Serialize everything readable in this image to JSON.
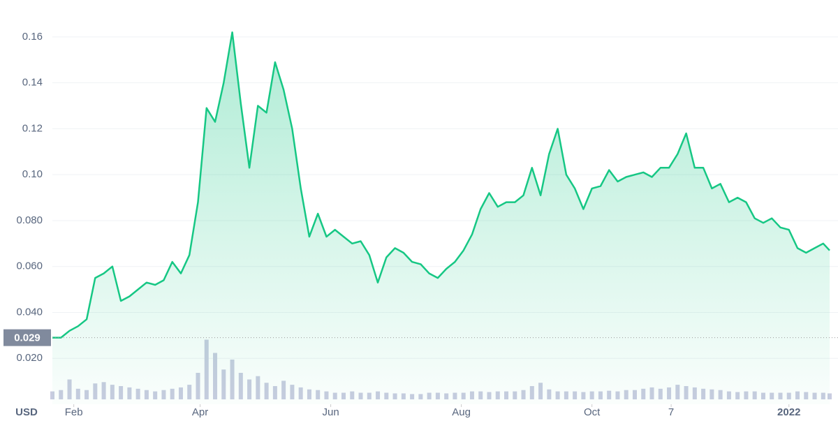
{
  "chart_data": {
    "type": "line",
    "unit_label": "USD",
    "x": [
      0,
      4,
      8,
      12,
      16,
      20,
      24,
      28,
      32,
      36,
      40,
      44,
      48,
      52,
      56,
      60,
      64,
      68,
      72,
      76,
      80,
      84,
      88,
      92,
      96,
      100,
      104,
      108,
      112,
      116,
      120,
      124,
      128,
      132,
      136,
      140,
      144,
      148,
      152,
      156,
      160,
      164,
      168,
      172,
      176,
      180,
      184,
      188,
      192,
      196,
      200,
      204,
      208,
      212,
      216,
      220,
      224,
      228,
      232,
      236,
      240,
      244,
      248,
      252,
      256,
      260,
      264,
      268,
      272,
      276,
      280,
      284,
      288,
      292,
      296,
      300,
      304,
      308,
      312,
      316,
      320,
      324,
      328,
      332,
      336,
      340,
      344,
      348,
      352,
      356,
      360,
      363
    ],
    "series": [
      {
        "type": "line",
        "color": "#16c784",
        "values": [
          0.029,
          0.029,
          0.032,
          0.034,
          0.037,
          0.055,
          0.057,
          0.06,
          0.045,
          0.047,
          0.05,
          0.053,
          0.052,
          0.054,
          0.062,
          0.057,
          0.065,
          0.088,
          0.129,
          0.123,
          0.14,
          0.162,
          0.131,
          0.103,
          0.13,
          0.127,
          0.149,
          0.137,
          0.12,
          0.094,
          0.073,
          0.083,
          0.073,
          0.076,
          0.073,
          0.07,
          0.071,
          0.065,
          0.053,
          0.064,
          0.068,
          0.066,
          0.062,
          0.061,
          0.057,
          0.055,
          0.059,
          0.062,
          0.067,
          0.074,
          0.085,
          0.092,
          0.086,
          0.088,
          0.088,
          0.091,
          0.103,
          0.091,
          0.109,
          0.12,
          0.1,
          0.094,
          0.085,
          0.094,
          0.095,
          0.102,
          0.097,
          0.099,
          0.1,
          0.101,
          0.099,
          0.103,
          0.103,
          0.109,
          0.118,
          0.103,
          0.103,
          0.094,
          0.096,
          0.088,
          0.09,
          0.088,
          0.081,
          0.079,
          0.081,
          0.077,
          0.076,
          0.068,
          0.066,
          0.068,
          0.07,
          0.067
        ]
      },
      {
        "type": "bar",
        "color": "#c9cce0",
        "axis": "y2",
        "values": [
          12,
          14,
          30,
          16,
          14,
          24,
          26,
          22,
          20,
          18,
          16,
          14,
          12,
          14,
          16,
          18,
          22,
          40,
          90,
          70,
          45,
          60,
          40,
          30,
          35,
          25,
          20,
          28,
          22,
          18,
          15,
          14,
          12,
          10,
          10,
          12,
          10,
          10,
          12,
          10,
          9,
          9,
          8,
          8,
          10,
          10,
          9,
          10,
          10,
          12,
          12,
          11,
          12,
          12,
          12,
          14,
          20,
          25,
          15,
          12,
          12,
          12,
          11,
          12,
          12,
          13,
          12,
          14,
          14,
          16,
          18,
          16,
          18,
          22,
          20,
          18,
          16,
          15,
          14,
          12,
          11,
          12,
          12,
          10,
          10,
          10,
          10,
          12,
          11,
          10,
          10,
          9
        ]
      }
    ],
    "xlim": [
      0,
      363
    ],
    "xticks": [
      {
        "value": 10,
        "label": "Feb"
      },
      {
        "value": 69,
        "label": "Apr"
      },
      {
        "value": 130,
        "label": "Jun"
      },
      {
        "value": 191,
        "label": "Aug"
      },
      {
        "value": 252,
        "label": "Oct"
      },
      {
        "value": 289,
        "label": "7"
      },
      {
        "value": 344,
        "label": "2022"
      }
    ],
    "ylim": [
      0,
      0.17
    ],
    "yticks": [
      {
        "value": 0.02,
        "label": "0.020"
      },
      {
        "value": 0.04,
        "label": "0.040"
      },
      {
        "value": 0.06,
        "label": "0.060"
      },
      {
        "value": 0.08,
        "label": "0.080"
      },
      {
        "value": 0.1,
        "label": "0.10"
      },
      0.12,
      0.14,
      0.16
    ],
    "y2lim": [
      0,
      100
    ],
    "reference_line": {
      "value": 0.029
    },
    "grid": true
  }
}
